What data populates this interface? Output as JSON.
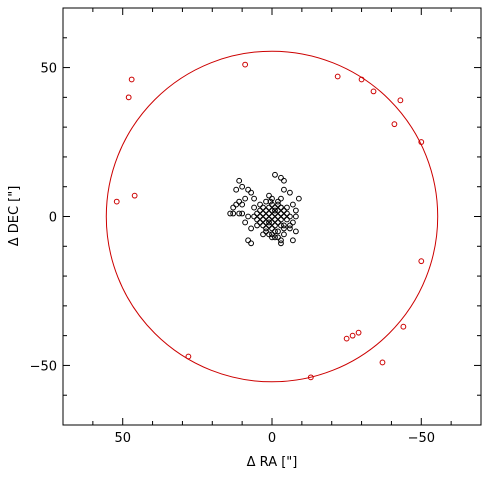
{
  "chart_data": {
    "type": "scatter",
    "title": "",
    "xlabel": "Δ RA [\"]",
    "ylabel": "Δ DEC [\"]",
    "xlim": [
      70,
      -70
    ],
    "ylim": [
      -70,
      70
    ],
    "x_ticks": [
      50,
      0,
      -50
    ],
    "y_ticks": [
      -50,
      0,
      50
    ],
    "grid": false,
    "colors": {
      "core": "#000000",
      "outer": "#cc0000",
      "circle": "#cc0000"
    },
    "circle": {
      "center": [
        0,
        0
      ],
      "radius": 55.5
    },
    "series": [
      {
        "points": [
          [
            0,
            0
          ],
          [
            1,
            1
          ],
          [
            -1,
            1
          ],
          [
            1,
            -1
          ],
          [
            -1,
            -1
          ],
          [
            2,
            0
          ],
          [
            -2,
            0
          ],
          [
            0,
            2
          ],
          [
            0,
            -2
          ],
          [
            2,
            2
          ],
          [
            -2,
            2
          ],
          [
            2,
            -2
          ],
          [
            -2,
            -2
          ],
          [
            3,
            1
          ],
          [
            -3,
            1
          ],
          [
            3,
            -1
          ],
          [
            -3,
            -1
          ],
          [
            1,
            3
          ],
          [
            -1,
            3
          ],
          [
            1,
            -3
          ],
          [
            -1,
            -3
          ],
          [
            4,
            0
          ],
          [
            -4,
            0
          ],
          [
            0,
            4
          ],
          [
            0,
            -4
          ],
          [
            3,
            3
          ],
          [
            -3,
            3
          ],
          [
            3,
            -3
          ],
          [
            -3,
            -3
          ],
          [
            5,
            1
          ],
          [
            -5,
            1
          ],
          [
            5,
            -1
          ],
          [
            -5,
            -1
          ],
          [
            2,
            5
          ],
          [
            -2,
            5
          ],
          [
            2,
            -5
          ],
          [
            -2,
            -5
          ],
          [
            4,
            4
          ],
          [
            -4,
            -4
          ],
          [
            6,
            0
          ],
          [
            -6,
            0
          ],
          [
            0,
            6
          ],
          [
            0,
            -6
          ],
          [
            1,
            7
          ],
          [
            -1,
            -7
          ],
          [
            6,
            3
          ],
          [
            -6,
            -3
          ],
          [
            3,
            -6
          ],
          [
            -3,
            6
          ],
          [
            2,
            -4
          ],
          [
            -2,
            4
          ],
          [
            4,
            -2
          ],
          [
            -4,
            2
          ],
          [
            1,
            -6
          ],
          [
            -1,
            -5
          ],
          [
            -3,
            -8
          ],
          [
            -4,
            -6
          ],
          [
            -2,
            -7
          ],
          [
            0,
            -7
          ],
          [
            0.5,
            5
          ],
          [
            -5,
            3
          ],
          [
            -4,
            9
          ],
          [
            -4,
            12
          ],
          [
            -3,
            13
          ],
          [
            -1,
            14
          ],
          [
            -7,
            4
          ],
          [
            -6,
            8
          ],
          [
            -8,
            2
          ],
          [
            -8,
            -5
          ],
          [
            -7,
            -2
          ],
          [
            7,
            8
          ],
          [
            8,
            9
          ],
          [
            6,
            6
          ],
          [
            9,
            6
          ],
          [
            10,
            10
          ],
          [
            11,
            12
          ],
          [
            12,
            9
          ],
          [
            11,
            5
          ],
          [
            12,
            4
          ],
          [
            11,
            1
          ],
          [
            10,
            1
          ],
          [
            10,
            4
          ],
          [
            13,
            1
          ],
          [
            14,
            1
          ],
          [
            13,
            3
          ],
          [
            8,
            0
          ],
          [
            9,
            -2
          ],
          [
            7,
            -4
          ],
          [
            8,
            -8
          ],
          [
            7,
            -9
          ],
          [
            -3,
            -9
          ],
          [
            -6,
            -4
          ],
          [
            -4,
            -3
          ],
          [
            -7,
            -8
          ],
          [
            -8,
            0
          ],
          [
            -9,
            6
          ],
          [
            -3,
            3
          ],
          [
            4,
            2
          ],
          [
            5,
            -3
          ],
          [
            -1,
            2
          ],
          [
            1,
            -2
          ]
        ]
      },
      {
        "points": [
          [
            9,
            51
          ],
          [
            -22,
            47
          ],
          [
            -30,
            46
          ],
          [
            -34,
            42
          ],
          [
            -43,
            39
          ],
          [
            -41,
            31
          ],
          [
            -50,
            25
          ],
          [
            47,
            46
          ],
          [
            48,
            40
          ],
          [
            46,
            7
          ],
          [
            52,
            5
          ],
          [
            -50,
            -15
          ],
          [
            -44,
            -37
          ],
          [
            -29,
            -39
          ],
          [
            -27,
            -40
          ],
          [
            -25,
            -41
          ],
          [
            -37,
            -49
          ],
          [
            -13,
            -54
          ],
          [
            28,
            -47
          ]
        ]
      }
    ]
  }
}
